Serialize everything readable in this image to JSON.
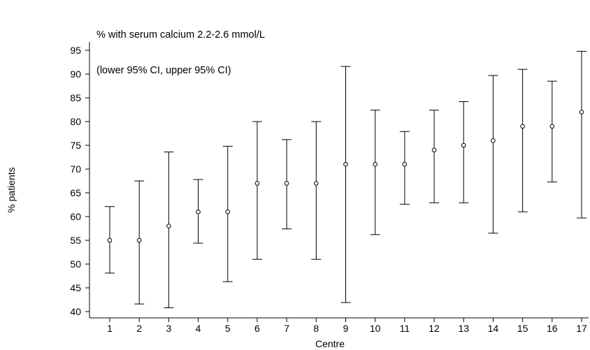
{
  "chart_data": {
    "type": "error-bar",
    "title_line1": "% with serum calcium 2.2-2.6 mmol/L",
    "title_line2": "(lower 95% CI, upper 95% CI)",
    "xlabel": "Centre",
    "ylabel": "% patients",
    "ylim": [
      38,
      96
    ],
    "yticks": [
      40,
      45,
      50,
      55,
      60,
      65,
      70,
      75,
      80,
      85,
      90,
      95
    ],
    "xlim": [
      0.5,
      17.3
    ],
    "categories": [
      1,
      2,
      3,
      4,
      5,
      6,
      7,
      8,
      9,
      10,
      11,
      12,
      13,
      14,
      15,
      16,
      17
    ],
    "values": [
      55,
      55,
      58,
      61,
      61,
      67,
      67,
      67,
      71,
      71,
      71,
      74,
      75,
      76,
      79,
      79,
      82
    ],
    "lower": [
      48.1,
      41.6,
      40.8,
      54.4,
      46.3,
      51.0,
      57.4,
      51.0,
      41.9,
      56.2,
      62.6,
      62.9,
      62.9,
      56.5,
      61.0,
      67.3,
      59.7
    ],
    "upper": [
      62.1,
      67.5,
      73.6,
      67.8,
      74.8,
      80.0,
      76.2,
      80.0,
      91.6,
      82.4,
      77.9,
      82.4,
      84.2,
      89.7,
      91.0,
      88.5,
      94.8
    ],
    "grid": false,
    "marker": "open-circle"
  }
}
